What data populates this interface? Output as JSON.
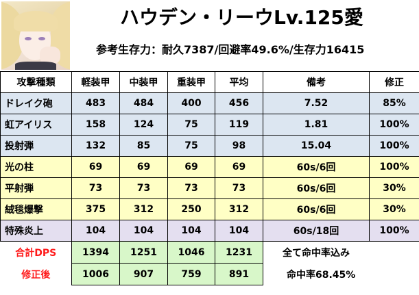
{
  "header": {
    "title": "ハウデン・リーウLv.125愛",
    "stats": "参考生存力：耐久7387/回避率49.6%/生存力16415"
  },
  "table": {
    "columns": [
      "攻撃種類",
      "軽装甲",
      "中装甲",
      "重装甲",
      "平均",
      "備考",
      "修正"
    ],
    "rows": [
      {
        "style": "blue",
        "cells": [
          "ドレイク砲",
          "483",
          "484",
          "400",
          "456",
          "7.52",
          "85%"
        ]
      },
      {
        "style": "blue",
        "cells": [
          "虹アイリス",
          "158",
          "124",
          "75",
          "119",
          "1.81",
          "100%"
        ]
      },
      {
        "style": "blue",
        "cells": [
          "投射弾",
          "132",
          "85",
          "75",
          "98",
          "15.04",
          "100%"
        ]
      },
      {
        "style": "yellow",
        "cells": [
          "光の柱",
          "69",
          "69",
          "69",
          "69",
          "60s/6回",
          "100%"
        ]
      },
      {
        "style": "yellow",
        "cells": [
          "平射弾",
          "73",
          "73",
          "73",
          "73",
          "60s/6回",
          "30%"
        ]
      },
      {
        "style": "yellow",
        "cells": [
          "絨毯爆撃",
          "375",
          "312",
          "250",
          "312",
          "60s/6回",
          "30%"
        ]
      },
      {
        "style": "lav",
        "cells": [
          "特殊炎上",
          "104",
          "104",
          "104",
          "104",
          "60s/18回",
          "100%"
        ]
      }
    ],
    "summary": [
      {
        "label": "合計DPS",
        "values": [
          "1394",
          "1251",
          "1046",
          "1231"
        ],
        "note": "全て命中率込み"
      },
      {
        "label": "修正後",
        "values": [
          "1006",
          "907",
          "759",
          "891"
        ],
        "note": "命中率68.45%"
      }
    ]
  },
  "colors": {
    "blue_row": "#dce6f1",
    "yellow_row": "#ffffc5",
    "lavender_row": "#e4dff0",
    "summary_value": "#d8f7c9",
    "summary_label": "#ff1a1a"
  }
}
